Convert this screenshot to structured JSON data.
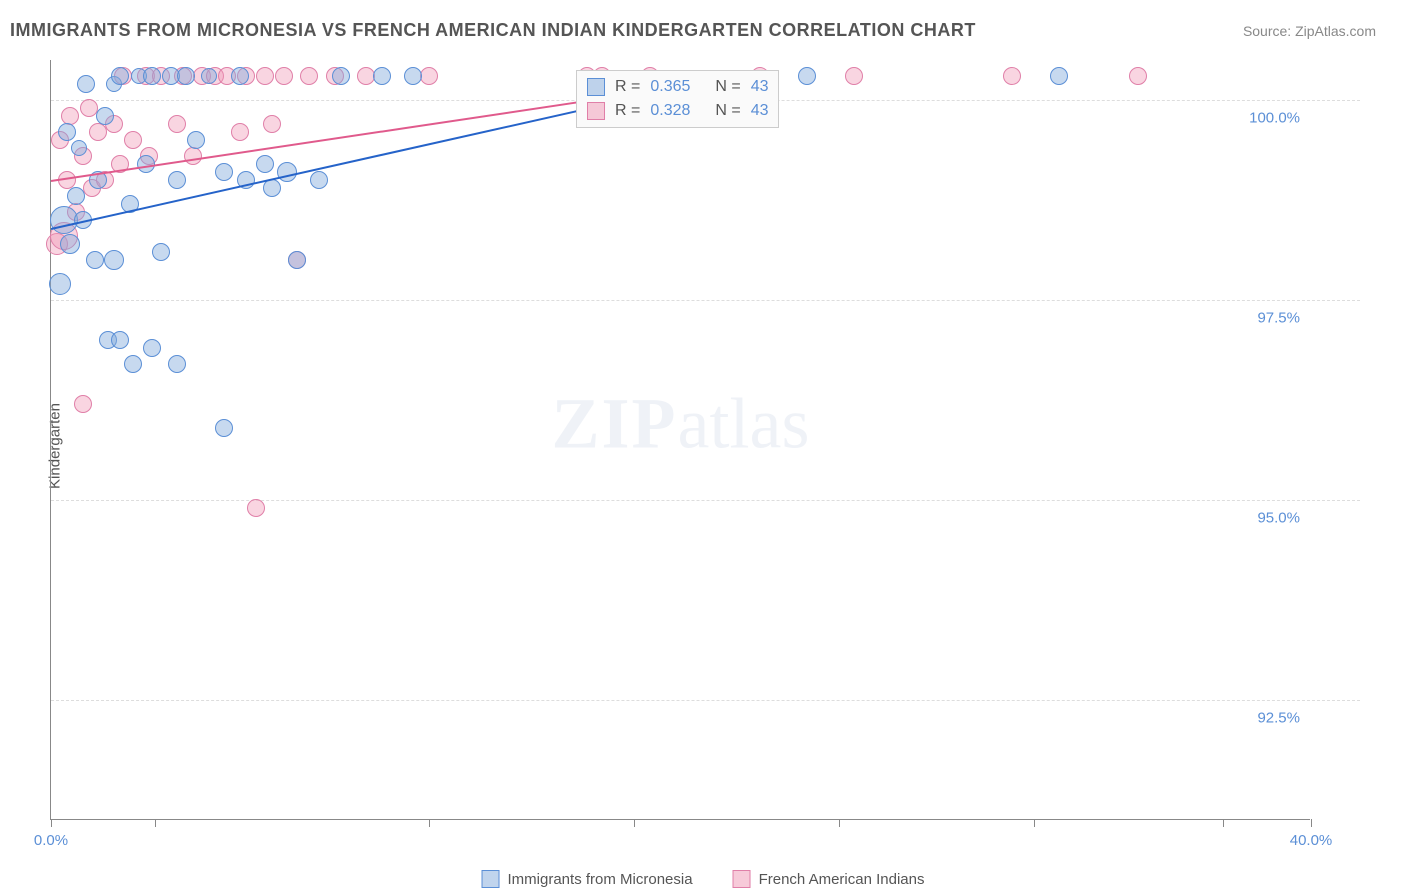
{
  "title": "IMMIGRANTS FROM MICRONESIA VS FRENCH AMERICAN INDIAN KINDERGARTEN CORRELATION CHART",
  "source": "Source: ZipAtlas.com",
  "y_axis_label": "Kindergarten",
  "watermark_bold": "ZIP",
  "watermark_rest": "atlas",
  "chart": {
    "type": "scatter",
    "background_color": "#ffffff",
    "grid_color": "#dddddd",
    "axis_color": "#888888",
    "text_color": "#555555",
    "value_color": "#5b8fd6",
    "xlim": [
      0.0,
      40.0
    ],
    "ylim": [
      91.0,
      100.5
    ],
    "x_ticks": [
      0.0,
      3.3,
      12.0,
      18.5,
      25.0,
      31.2,
      37.2,
      40.0
    ],
    "x_tick_labels_shown": {
      "0": "0.0%",
      "40": "40.0%"
    },
    "y_ticks": [
      92.5,
      95.0,
      97.5,
      100.0
    ],
    "y_tick_labels": [
      "92.5%",
      "95.0%",
      "97.5%",
      "100.0%"
    ],
    "marker_base_radius": 9,
    "series": [
      {
        "name": "Immigrants from Micronesia",
        "color_fill": "rgba(130,170,220,0.45)",
        "color_stroke": "#5b8fd6",
        "r_value": "0.365",
        "n_value": "43",
        "trend_line": {
          "x1": 0.0,
          "y1": 98.4,
          "x2": 17.0,
          "y2": 99.9,
          "color": "#2563c9"
        },
        "points": [
          {
            "x": 0.3,
            "y": 97.7,
            "r": 11
          },
          {
            "x": 0.4,
            "y": 98.5,
            "r": 14
          },
          {
            "x": 0.5,
            "y": 99.6,
            "r": 9
          },
          {
            "x": 0.6,
            "y": 98.2,
            "r": 10
          },
          {
            "x": 0.8,
            "y": 98.8,
            "r": 9
          },
          {
            "x": 0.9,
            "y": 99.4,
            "r": 8
          },
          {
            "x": 1.0,
            "y": 98.5,
            "r": 9
          },
          {
            "x": 1.1,
            "y": 100.2,
            "r": 9
          },
          {
            "x": 1.4,
            "y": 98.0,
            "r": 9
          },
          {
            "x": 1.5,
            "y": 99.0,
            "r": 9
          },
          {
            "x": 1.7,
            "y": 99.8,
            "r": 9
          },
          {
            "x": 1.8,
            "y": 97.0,
            "r": 9
          },
          {
            "x": 2.0,
            "y": 98.0,
            "r": 10
          },
          {
            "x": 2.0,
            "y": 100.2,
            "r": 8
          },
          {
            "x": 2.2,
            "y": 97.0,
            "r": 9
          },
          {
            "x": 2.2,
            "y": 100.3,
            "r": 9
          },
          {
            "x": 2.5,
            "y": 98.7,
            "r": 9
          },
          {
            "x": 2.6,
            "y": 96.7,
            "r": 9
          },
          {
            "x": 2.8,
            "y": 100.3,
            "r": 8
          },
          {
            "x": 3.0,
            "y": 99.2,
            "r": 9
          },
          {
            "x": 3.2,
            "y": 96.9,
            "r": 9
          },
          {
            "x": 3.2,
            "y": 100.3,
            "r": 9
          },
          {
            "x": 3.5,
            "y": 98.1,
            "r": 9
          },
          {
            "x": 3.8,
            "y": 100.3,
            "r": 9
          },
          {
            "x": 4.0,
            "y": 99.0,
            "r": 9
          },
          {
            "x": 4.0,
            "y": 96.7,
            "r": 9
          },
          {
            "x": 4.3,
            "y": 100.3,
            "r": 9
          },
          {
            "x": 4.6,
            "y": 99.5,
            "r": 9
          },
          {
            "x": 5.0,
            "y": 100.3,
            "r": 8
          },
          {
            "x": 5.5,
            "y": 99.1,
            "r": 9
          },
          {
            "x": 5.5,
            "y": 95.9,
            "r": 9
          },
          {
            "x": 6.0,
            "y": 100.3,
            "r": 9
          },
          {
            "x": 6.2,
            "y": 99.0,
            "r": 9
          },
          {
            "x": 6.8,
            "y": 99.2,
            "r": 9
          },
          {
            "x": 7.0,
            "y": 98.9,
            "r": 9
          },
          {
            "x": 7.5,
            "y": 99.1,
            "r": 10
          },
          {
            "x": 7.8,
            "y": 98.0,
            "r": 9
          },
          {
            "x": 8.5,
            "y": 99.0,
            "r": 9
          },
          {
            "x": 9.2,
            "y": 100.3,
            "r": 9
          },
          {
            "x": 10.5,
            "y": 100.3,
            "r": 9
          },
          {
            "x": 11.5,
            "y": 100.3,
            "r": 9
          },
          {
            "x": 24.0,
            "y": 100.3,
            "r": 9
          },
          {
            "x": 32.0,
            "y": 100.3,
            "r": 9
          }
        ]
      },
      {
        "name": "French American Indians",
        "color_fill": "rgba(240,150,180,0.40)",
        "color_stroke": "#e07fa8",
        "r_value": "0.328",
        "n_value": "43",
        "trend_line": {
          "x1": 0.0,
          "y1": 99.0,
          "x2": 17.0,
          "y2": 100.0,
          "color": "#e05a8c"
        },
        "points": [
          {
            "x": 0.2,
            "y": 98.2,
            "r": 11
          },
          {
            "x": 0.3,
            "y": 99.5,
            "r": 9
          },
          {
            "x": 0.4,
            "y": 98.3,
            "r": 14
          },
          {
            "x": 0.5,
            "y": 99.0,
            "r": 9
          },
          {
            "x": 0.6,
            "y": 99.8,
            "r": 9
          },
          {
            "x": 0.8,
            "y": 98.6,
            "r": 9
          },
          {
            "x": 1.0,
            "y": 99.3,
            "r": 9
          },
          {
            "x": 1.0,
            "y": 96.2,
            "r": 9
          },
          {
            "x": 1.2,
            "y": 99.9,
            "r": 9
          },
          {
            "x": 1.3,
            "y": 98.9,
            "r": 9
          },
          {
            "x": 1.5,
            "y": 99.6,
            "r": 9
          },
          {
            "x": 1.7,
            "y": 99.0,
            "r": 9
          },
          {
            "x": 2.0,
            "y": 99.7,
            "r": 9
          },
          {
            "x": 2.2,
            "y": 99.2,
            "r": 9
          },
          {
            "x": 2.3,
            "y": 100.3,
            "r": 9
          },
          {
            "x": 2.6,
            "y": 99.5,
            "r": 9
          },
          {
            "x": 3.0,
            "y": 100.3,
            "r": 9
          },
          {
            "x": 3.1,
            "y": 99.3,
            "r": 9
          },
          {
            "x": 3.5,
            "y": 100.3,
            "r": 9
          },
          {
            "x": 4.0,
            "y": 99.7,
            "r": 9
          },
          {
            "x": 4.2,
            "y": 100.3,
            "r": 9
          },
          {
            "x": 4.5,
            "y": 99.3,
            "r": 9
          },
          {
            "x": 4.8,
            "y": 100.3,
            "r": 9
          },
          {
            "x": 5.2,
            "y": 100.3,
            "r": 9
          },
          {
            "x": 5.6,
            "y": 100.3,
            "r": 9
          },
          {
            "x": 6.0,
            "y": 99.6,
            "r": 9
          },
          {
            "x": 6.2,
            "y": 100.3,
            "r": 9
          },
          {
            "x": 6.5,
            "y": 94.9,
            "r": 9
          },
          {
            "x": 6.8,
            "y": 100.3,
            "r": 9
          },
          {
            "x": 7.0,
            "y": 99.7,
            "r": 9
          },
          {
            "x": 7.4,
            "y": 100.3,
            "r": 9
          },
          {
            "x": 7.8,
            "y": 98.0,
            "r": 9
          },
          {
            "x": 8.2,
            "y": 100.3,
            "r": 9
          },
          {
            "x": 9.0,
            "y": 100.3,
            "r": 9
          },
          {
            "x": 10.0,
            "y": 100.3,
            "r": 9
          },
          {
            "x": 12.0,
            "y": 100.3,
            "r": 9
          },
          {
            "x": 17.0,
            "y": 100.3,
            "r": 9
          },
          {
            "x": 17.5,
            "y": 100.3,
            "r": 9
          },
          {
            "x": 19.0,
            "y": 100.3,
            "r": 9
          },
          {
            "x": 22.5,
            "y": 100.3,
            "r": 9
          },
          {
            "x": 25.5,
            "y": 100.3,
            "r": 9
          },
          {
            "x": 30.5,
            "y": 100.3,
            "r": 9
          },
          {
            "x": 34.5,
            "y": 100.3,
            "r": 9
          }
        ]
      }
    ]
  },
  "legend_top": {
    "r_label": "R =",
    "n_label": "N ="
  }
}
